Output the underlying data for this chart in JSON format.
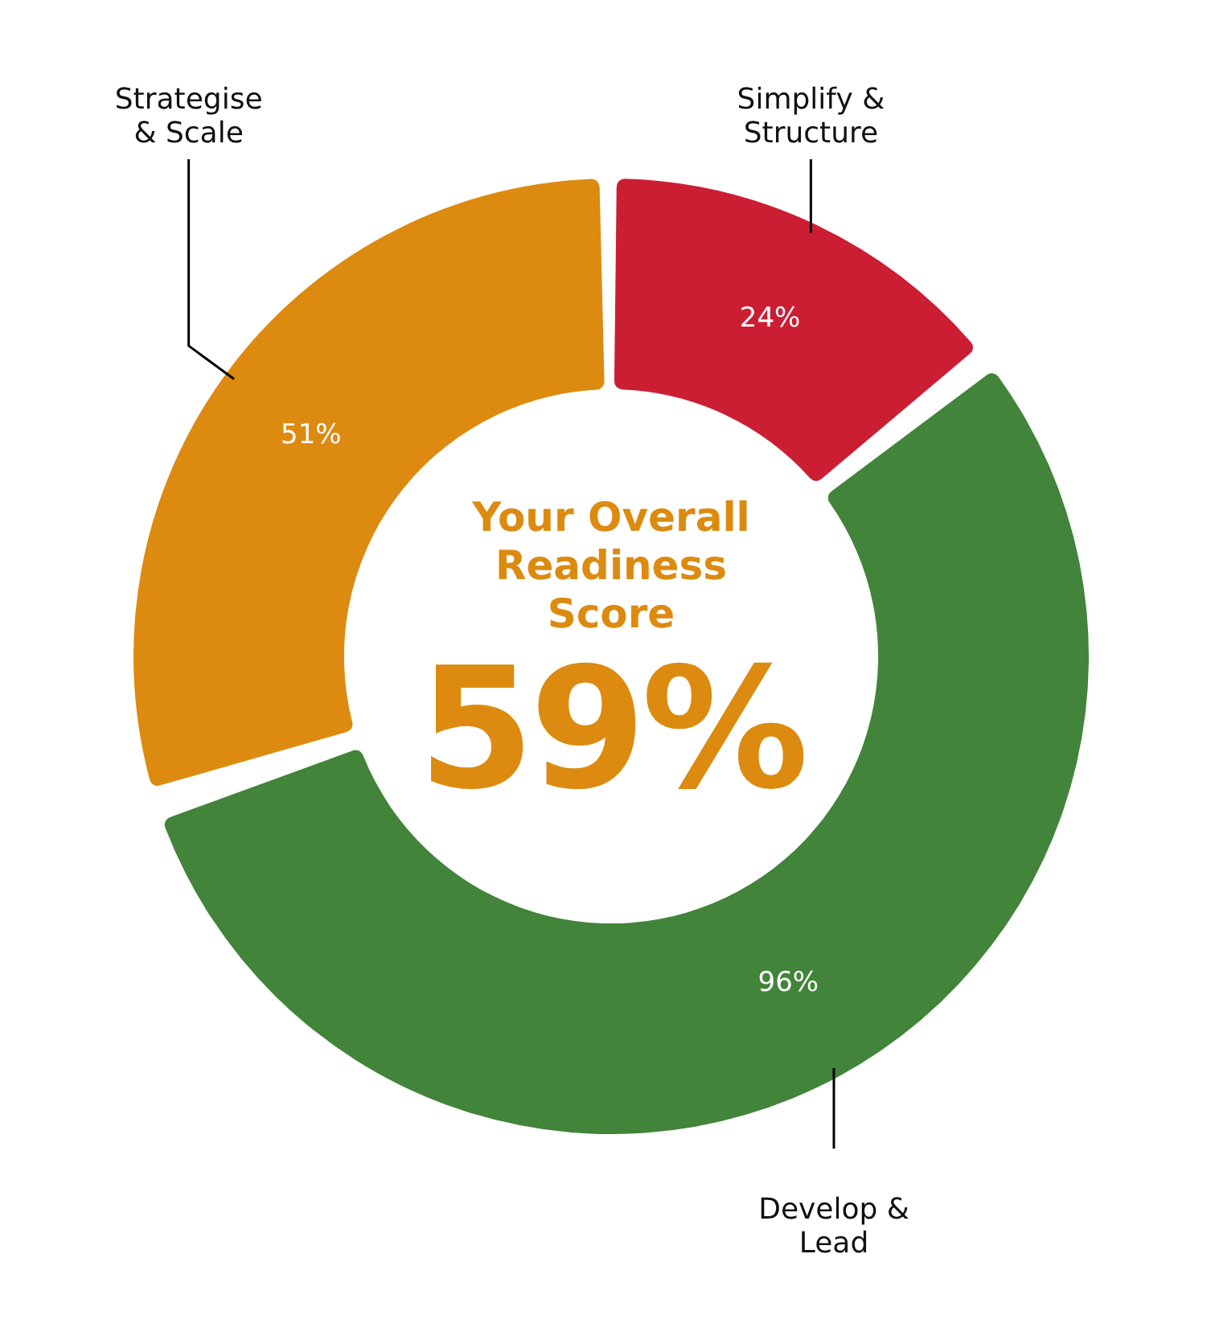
{
  "chart_data": {
    "type": "donut",
    "categories": [
      "Simplify & Structure",
      "Develop & Lead",
      "Strategise & Scale"
    ],
    "values": [
      24,
      96,
      51
    ],
    "value_labels": [
      "24%",
      "96%",
      "51%"
    ],
    "colors": [
      "#cb1e33",
      "#42843a",
      "#dc8b10"
    ],
    "annotations": [
      "Your Overall Readiness Score",
      "59%"
    ],
    "legend": false
  }
}
